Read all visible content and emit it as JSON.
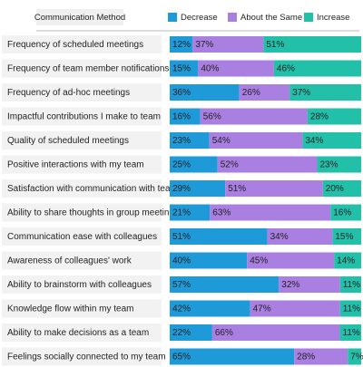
{
  "chart_data": {
    "type": "stacked_bar_100",
    "title": "Communication Method",
    "categories": [
      "Frequency of scheduled meetings",
      "Frequency of team member notifications",
      "Frequency of ad-hoc meetings",
      "Impactful contributions I make to team",
      "Quality of scheduled meetings",
      "Positive interactions with my team",
      "Satisfaction with communication with team",
      "Ability to share thoughts in group meetings",
      "Communication ease with colleagues",
      "Awareness of colleagues' work",
      "Ability to brainstorm with colleagues",
      "Knowledge flow within my team",
      "Ability to make decisions as a team",
      "Feelings socially connected to my team"
    ],
    "series": [
      {
        "name": "Decrease",
        "color": "#1f9ad8",
        "values": [
          12,
          15,
          36,
          16,
          23,
          25,
          29,
          21,
          51,
          40,
          57,
          42,
          22,
          65
        ],
        "value_labels": [
          "12%",
          "15%",
          "36%",
          "16%",
          "23%",
          "25%",
          "29%",
          "21%",
          "51%",
          "40%",
          "57%",
          "42%",
          "22%",
          "65%"
        ]
      },
      {
        "name": "About the Same",
        "color": "#a97fe2",
        "values": [
          37,
          40,
          26,
          56,
          54,
          52,
          51,
          63,
          34,
          45,
          32,
          47,
          66,
          28
        ],
        "value_labels": [
          "37%",
          "40%",
          "26%",
          "56%",
          "54%",
          "52%",
          "51%",
          "63%",
          "34%",
          "45%",
          "32%",
          "47%",
          "66%",
          "28%"
        ]
      },
      {
        "name": "Increase",
        "color": "#22bfa9",
        "values": [
          51,
          46,
          37,
          28,
          34,
          23,
          20,
          16,
          15,
          14,
          11,
          11,
          11,
          7
        ],
        "value_labels": [
          "51%",
          "46%",
          "37%",
          "28%",
          "34%",
          "23%",
          "20%",
          "16%",
          "15%",
          "14%",
          "11%",
          "11%",
          "11%",
          "7%"
        ]
      }
    ]
  }
}
